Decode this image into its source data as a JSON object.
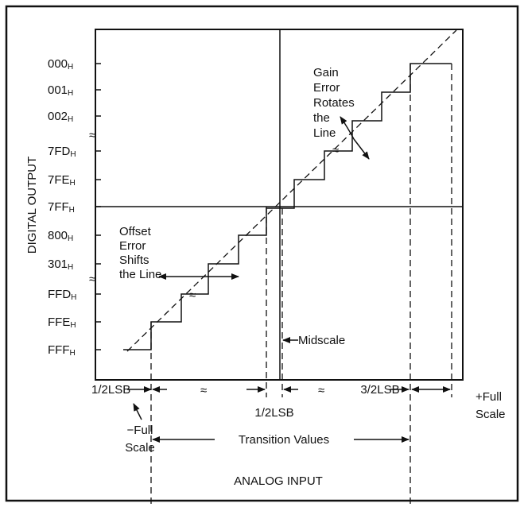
{
  "y_axis": {
    "title": "DIGITAL OUTPUT",
    "labels": [
      {
        "code": "000",
        "sub": "H"
      },
      {
        "code": "001",
        "sub": "H"
      },
      {
        "code": "002",
        "sub": "H"
      },
      {
        "code": "7FD",
        "sub": "H"
      },
      {
        "code": "7FE",
        "sub": "H"
      },
      {
        "code": "7FF",
        "sub": "H"
      },
      {
        "code": "800",
        "sub": "H"
      },
      {
        "code": "301",
        "sub": "H"
      },
      {
        "code": "FFD",
        "sub": "H"
      },
      {
        "code": "FFE",
        "sub": "H"
      },
      {
        "code": "FFF",
        "sub": "H"
      }
    ]
  },
  "x_axis": {
    "title": "ANALOG INPUT"
  },
  "annotations": {
    "gain": [
      "Gain",
      "Error",
      "Rotates",
      "the",
      "Line"
    ],
    "offset": [
      "Offset",
      "Error",
      "Shifts",
      "the Line"
    ],
    "midscale": "Midscale",
    "half_lsb_left": "1/2LSB",
    "half_lsb_mid": "1/2LSB",
    "three_half_lsb": "3/2LSB",
    "plus_full": [
      "+Full",
      "Scale"
    ],
    "minus_full": [
      "−Full",
      "Scale"
    ],
    "transition": "Transition Values"
  }
}
